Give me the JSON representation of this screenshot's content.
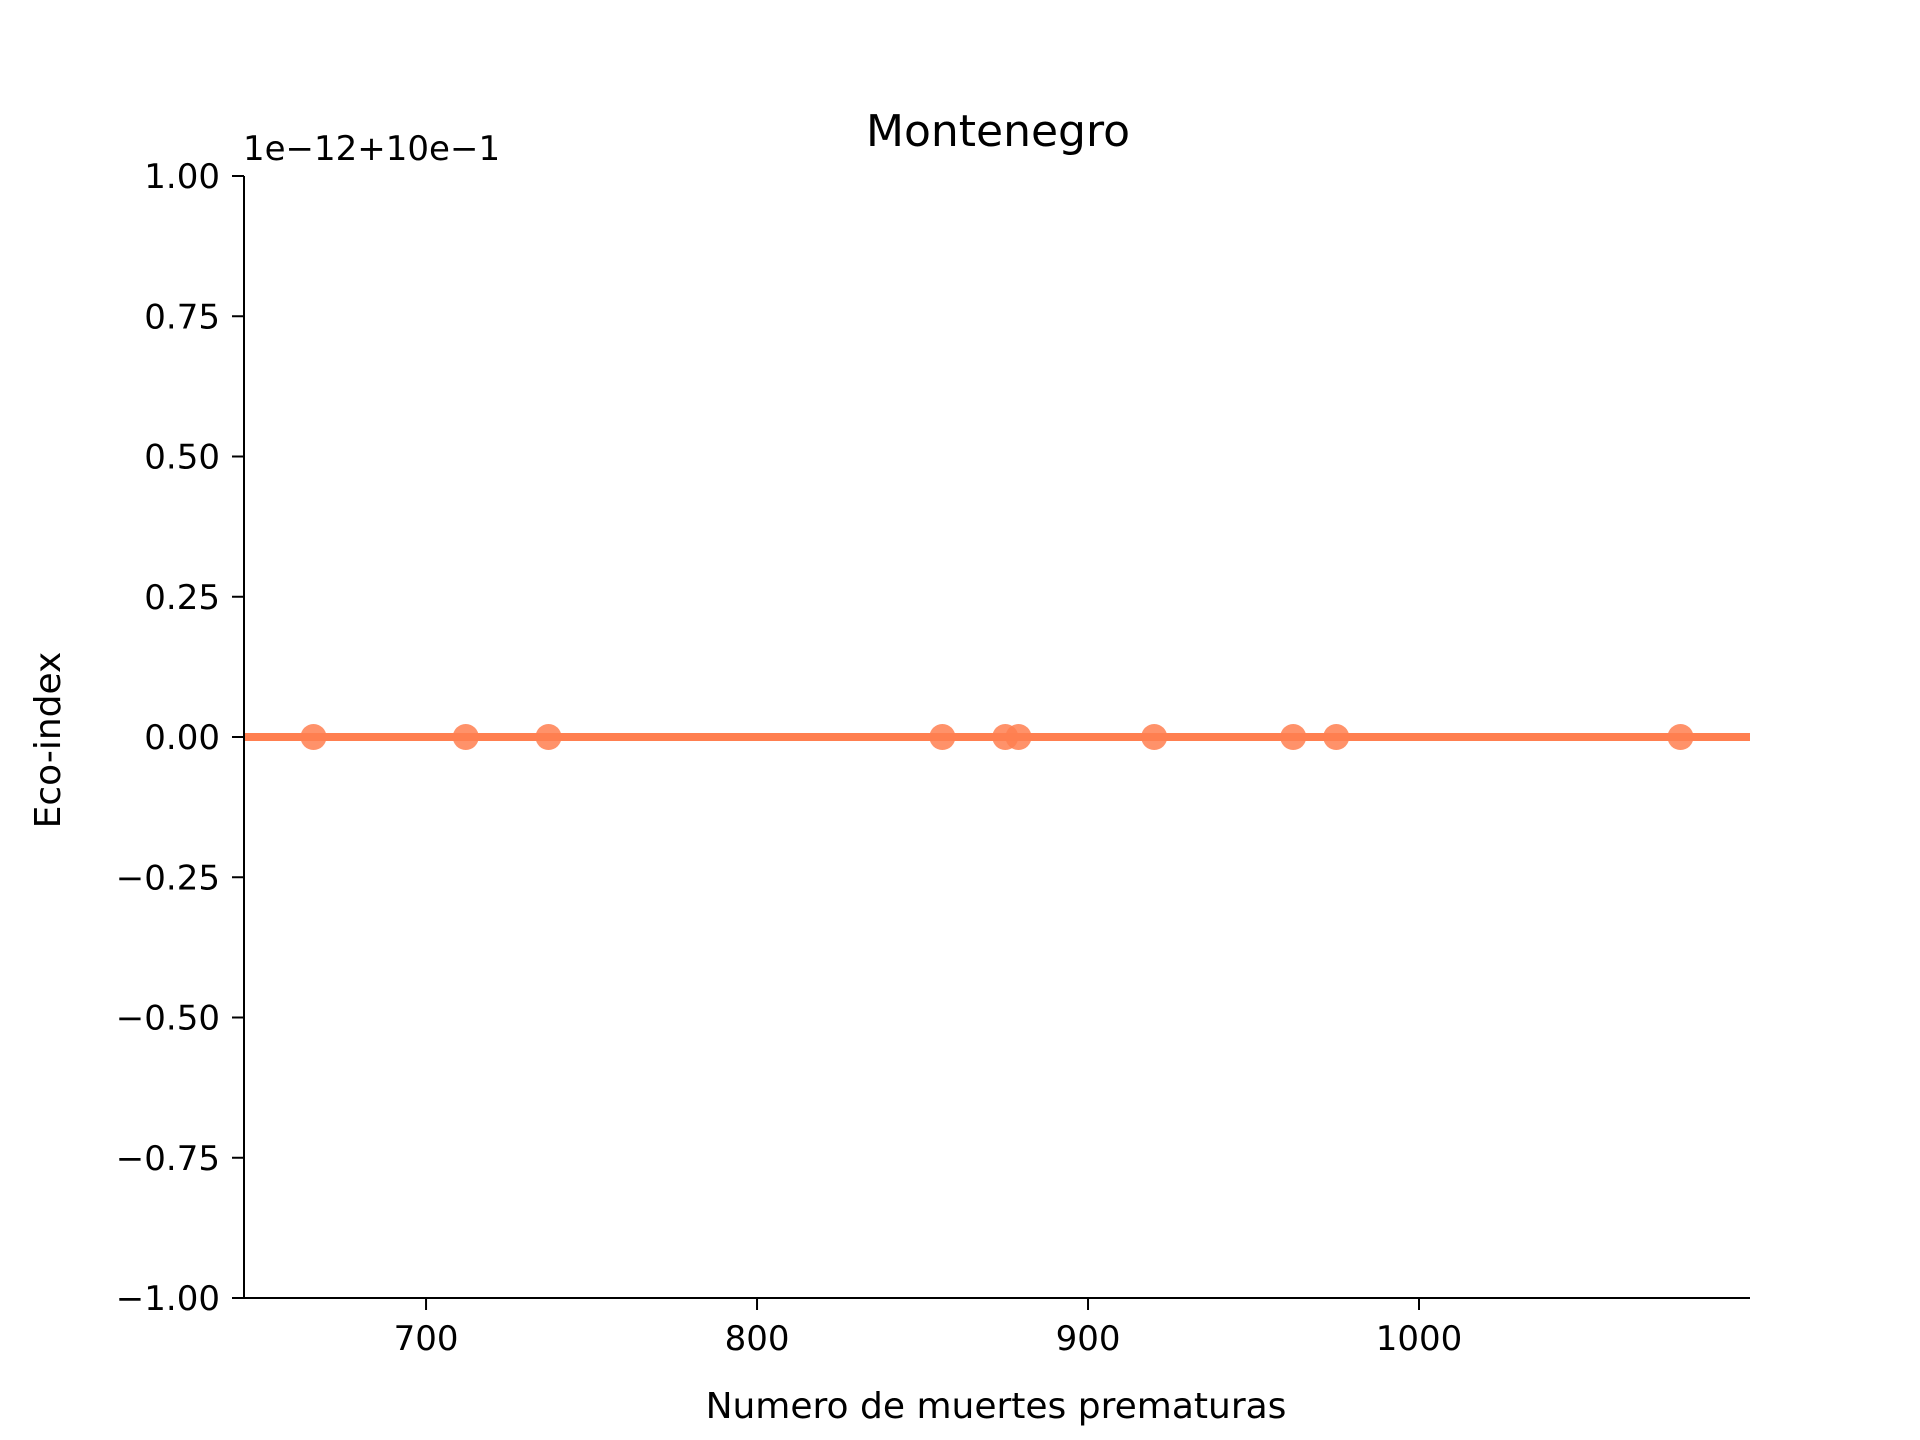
{
  "chart_data": {
    "type": "scatter",
    "title": "Montenegro",
    "xlabel": "Numero de muertes prematuras",
    "ylabel": "Eco-index",
    "offset_label": "1e−12+10e−1",
    "xlim": [
      645,
      1100
    ],
    "ylim": [
      -1.0,
      1.0
    ],
    "x_ticks": [
      700,
      800,
      900,
      1000
    ],
    "x_tick_labels": [
      "700",
      "800",
      "900",
      "1000"
    ],
    "y_ticks": [
      1.0,
      0.75,
      0.5,
      0.25,
      0.0,
      -0.25,
      -0.5,
      -0.75,
      -1.0
    ],
    "y_tick_labels": [
      "1.00",
      "0.75",
      "0.50",
      "0.25",
      "0.00",
      "−0.25",
      "−0.50",
      "−0.75",
      "−1.00"
    ],
    "series": [
      {
        "points": [
          {
            "x": 666,
            "y": 0
          },
          {
            "x": 712,
            "y": 0
          },
          {
            "x": 737,
            "y": 0
          },
          {
            "x": 856,
            "y": 0
          },
          {
            "x": 875,
            "y": 0
          },
          {
            "x": 879,
            "y": 0
          },
          {
            "x": 920,
            "y": 0
          },
          {
            "x": 962,
            "y": 0
          },
          {
            "x": 975,
            "y": 0
          },
          {
            "x": 1079,
            "y": 0
          }
        ],
        "fit_line": {
          "x": [
            645,
            1100
          ],
          "y": [
            0,
            0
          ]
        }
      }
    ],
    "colors": {
      "series": "#ff7f50",
      "axis": "#000000"
    },
    "grid": false,
    "legend": "none"
  }
}
